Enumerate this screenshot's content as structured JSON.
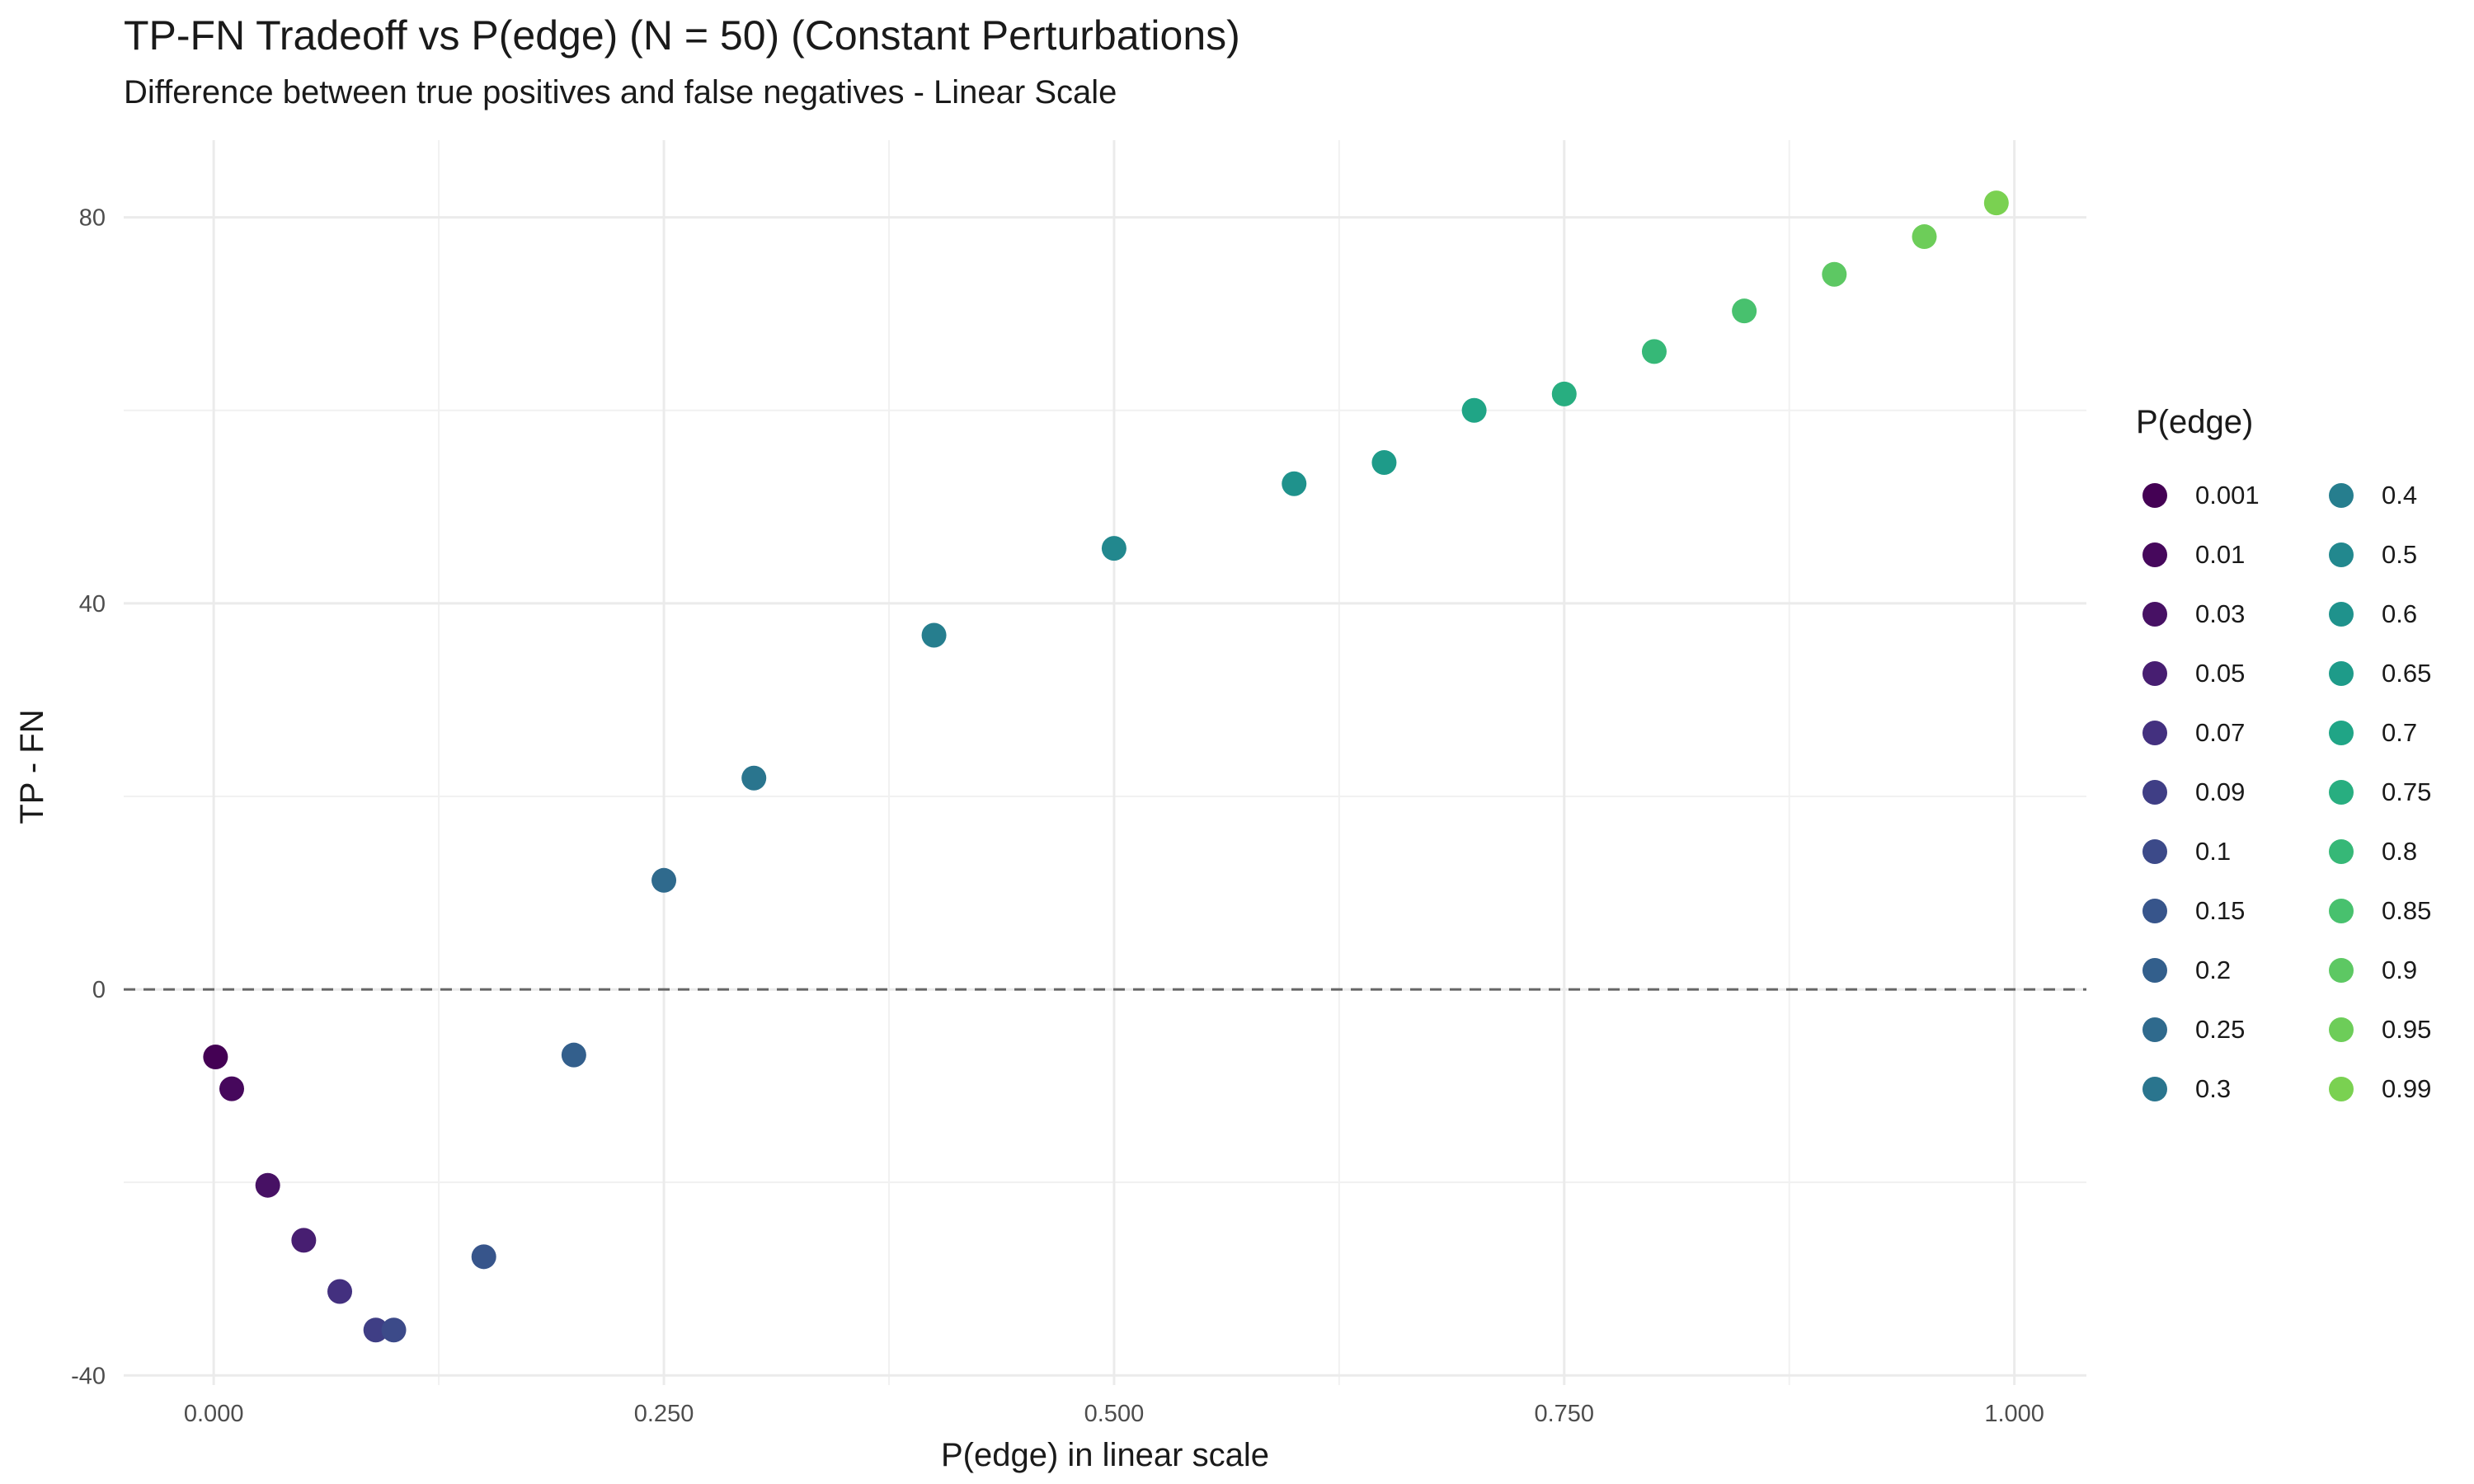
{
  "chart_data": {
    "type": "scatter",
    "title": "TP-FN Tradeoff vs P(edge) (N = 50) (Constant Perturbations)",
    "subtitle": "Difference between true positives and false negatives - Linear Scale",
    "xlabel": "P(edge) in linear scale",
    "ylabel": "TP - FN",
    "xlim": [
      -0.05,
      1.04
    ],
    "ylim": [
      -41,
      88
    ],
    "x_ticks": [
      0,
      0.25,
      0.5,
      0.75,
      1.0
    ],
    "x_tick_labels": [
      "0.000",
      "0.250",
      "0.500",
      "0.750",
      "1.000"
    ],
    "y_ticks": [
      -40,
      0,
      40,
      80
    ],
    "y_tick_labels": [
      "-40",
      "0",
      "40",
      "80"
    ],
    "reference_line": {
      "y": 0,
      "style": "dashed"
    },
    "grid": true,
    "legend_title": "P(edge)",
    "legend_position": "right",
    "points": [
      {
        "x": 0.001,
        "y": -7,
        "label": "0.001",
        "color": "#440154"
      },
      {
        "x": 0.01,
        "y": -10.3,
        "label": "0.01",
        "color": "#46085C"
      },
      {
        "x": 0.03,
        "y": -20.3,
        "label": "0.03",
        "color": "#471164"
      },
      {
        "x": 0.05,
        "y": -26,
        "label": "0.05",
        "color": "#471E71"
      },
      {
        "x": 0.07,
        "y": -31.3,
        "label": "0.07",
        "color": "#43307F"
      },
      {
        "x": 0.09,
        "y": -35.3,
        "label": "0.09",
        "color": "#3F3E85"
      },
      {
        "x": 0.1,
        "y": -35.3,
        "label": "0.1",
        "color": "#3C4A89"
      },
      {
        "x": 0.15,
        "y": -27.7,
        "label": "0.15",
        "color": "#37558B"
      },
      {
        "x": 0.2,
        "y": -6.8,
        "label": "0.2",
        "color": "#335F8C"
      },
      {
        "x": 0.25,
        "y": 11.3,
        "label": "0.25",
        "color": "#2F6A8D"
      },
      {
        "x": 0.3,
        "y": 21.9,
        "label": "0.3",
        "color": "#2A758E"
      },
      {
        "x": 0.4,
        "y": 36.7,
        "label": "0.4",
        "color": "#267E8E"
      },
      {
        "x": 0.5,
        "y": 45.7,
        "label": "0.5",
        "color": "#22888E"
      },
      {
        "x": 0.6,
        "y": 52.4,
        "label": "0.6",
        "color": "#1F928C"
      },
      {
        "x": 0.65,
        "y": 54.6,
        "label": "0.65",
        "color": "#1E9B89"
      },
      {
        "x": 0.7,
        "y": 60.0,
        "label": "0.7",
        "color": "#20A586"
      },
      {
        "x": 0.75,
        "y": 61.7,
        "label": "0.75",
        "color": "#28AE80"
      },
      {
        "x": 0.8,
        "y": 66.1,
        "label": "0.8",
        "color": "#36B877"
      },
      {
        "x": 0.85,
        "y": 70.3,
        "label": "0.85",
        "color": "#48C16E"
      },
      {
        "x": 0.9,
        "y": 74.1,
        "label": "0.9",
        "color": "#5DC863"
      },
      {
        "x": 0.95,
        "y": 78.0,
        "label": "0.95",
        "color": "#6DCD59"
      },
      {
        "x": 0.99,
        "y": 81.5,
        "label": "0.99",
        "color": "#7AD151"
      }
    ]
  }
}
